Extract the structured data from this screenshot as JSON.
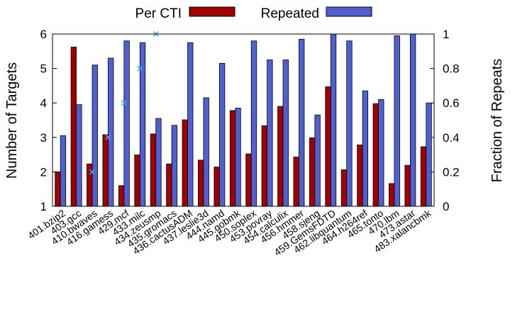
{
  "chart_data": {
    "type": "bar",
    "categories": [
      "401.bzip2",
      "403.gcc",
      "410.bwaves",
      "416.gamess",
      "429.mcf",
      "433.milc",
      "434.zeusmp",
      "435.gromacs",
      "436.cactusADM",
      "437.leslie3d",
      "444.namd",
      "445.gobmk",
      "450.soplex",
      "453.povray",
      "454.calculix",
      "456.hmmer",
      "458.sjeng",
      "459.GemsFDTD",
      "462.libquantum",
      "464.h264ref",
      "465.tonto",
      "470.lbm",
      "473.astar",
      "483.xalancbmk"
    ],
    "series": [
      {
        "name": "Per CTI",
        "axis": "left",
        "color": "#a00000",
        "values": [
          2.0,
          5.62,
          2.23,
          3.08,
          1.6,
          2.49,
          3.1,
          2.23,
          3.51,
          2.34,
          2.14,
          3.78,
          2.52,
          3.34,
          3.9,
          2.43,
          2.99,
          4.47,
          2.06,
          2.78,
          3.98,
          1.66,
          2.19,
          2.73
        ]
      },
      {
        "name": "Repeated",
        "axis": "right",
        "color": "#5060d0",
        "values": [
          0.41,
          0.59,
          0.82,
          0.86,
          0.96,
          0.95,
          0.51,
          0.47,
          0.95,
          0.63,
          0.83,
          0.57,
          0.96,
          0.85,
          0.85,
          0.97,
          0.53,
          1.0,
          0.96,
          0.67,
          0.62,
          0.99,
          1.0,
          0.6
        ]
      }
    ],
    "markers": [
      {
        "category": "410.bwaves",
        "value": 0.2
      },
      {
        "category": "416.gamess",
        "value": 0.4
      },
      {
        "category": "429.mcf",
        "value": 0.6
      },
      {
        "category": "433.milc",
        "value": 0.8
      },
      {
        "category": "434.zeusmp",
        "value": 1.0
      }
    ],
    "marker_color": "#4aa8e8",
    "ylabel": "Number of Targets",
    "y2label": "Fraction of Repeats",
    "ylim": [
      1,
      6
    ],
    "y2lim": [
      0,
      1
    ],
    "yticks": [
      "1",
      "2",
      "3",
      "4",
      "5",
      "6"
    ],
    "y2ticks": [
      "0",
      "0.2",
      "0.4",
      "0.6",
      "0.8",
      "1"
    ],
    "legend_position": "top"
  }
}
